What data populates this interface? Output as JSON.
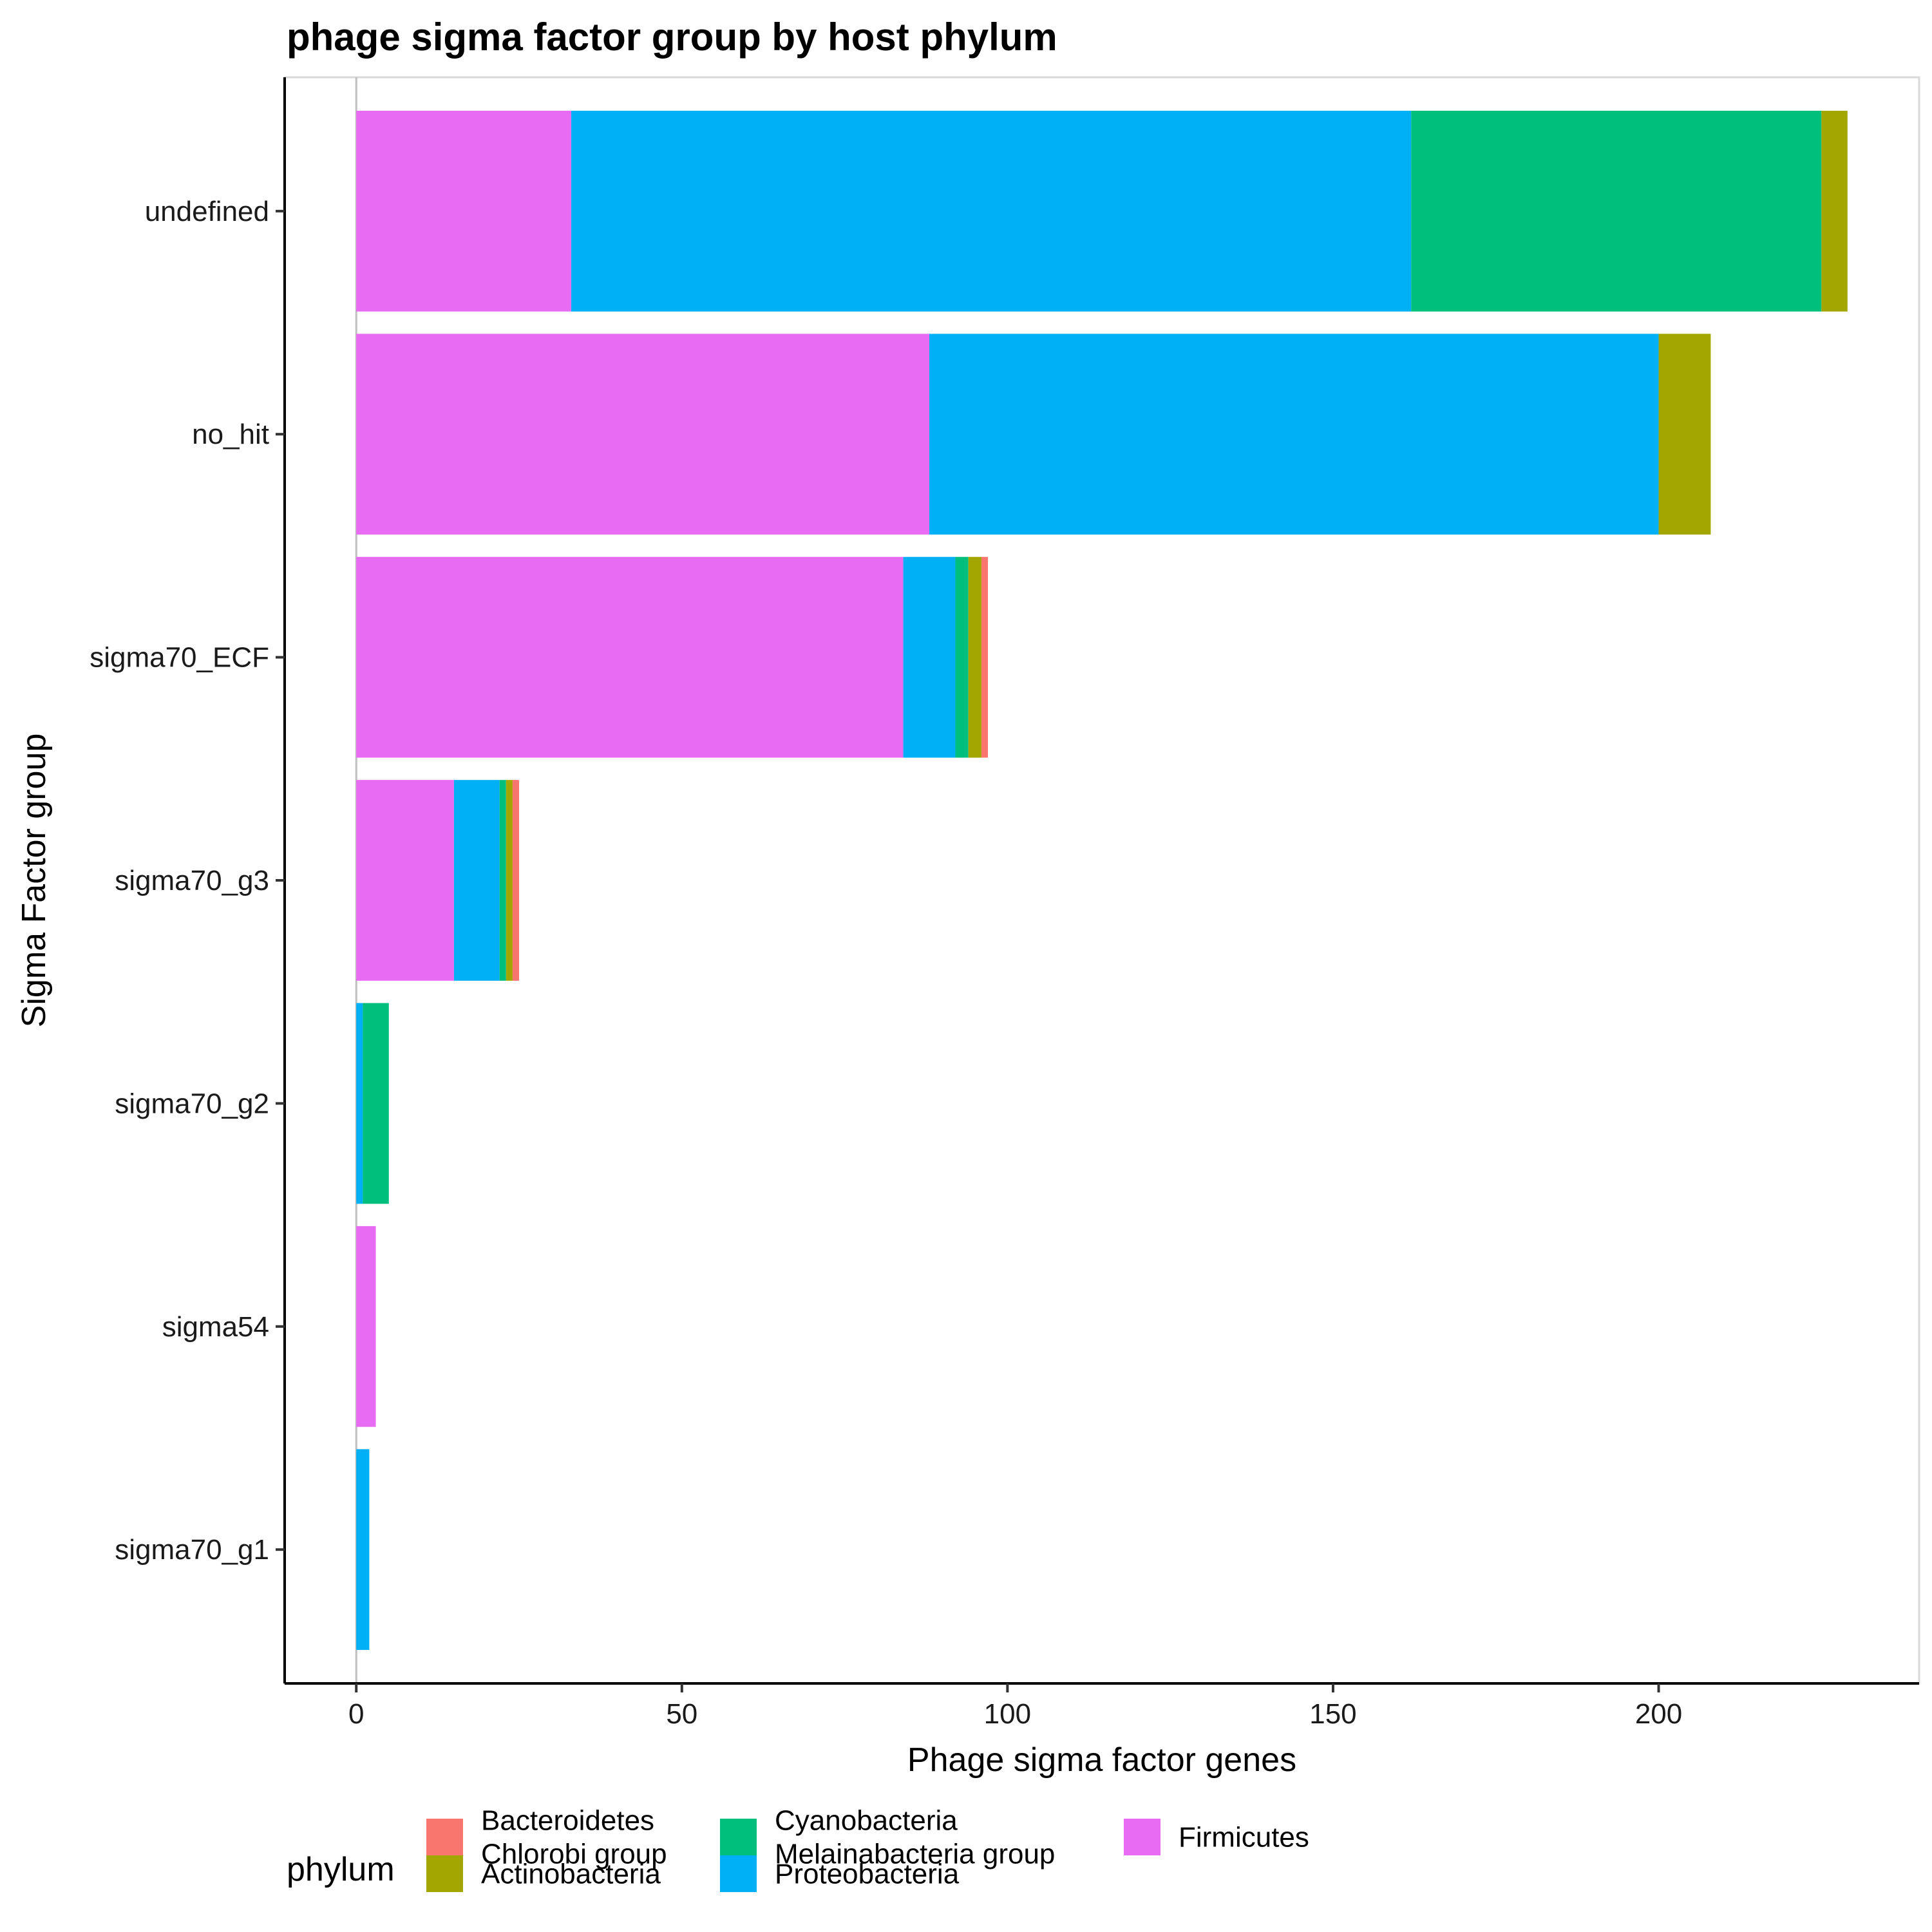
{
  "chart_data": {
    "type": "bar",
    "orientation": "horizontal",
    "stacked": true,
    "title": "phage sigma factor group by host phylum",
    "xlabel": "Phage sigma factor genes",
    "ylabel": "Sigma Factor group",
    "xlim": [
      -11,
      240
    ],
    "xticks": [
      0,
      50,
      100,
      150,
      200
    ],
    "grid": false,
    "legend_position": "bottom",
    "legend_title": "phylum",
    "categories": [
      "undefined",
      "no_hit",
      "sigma70_ECF",
      "sigma70_g3",
      "sigma70_g2",
      "sigma54",
      "sigma70_g1"
    ],
    "series": [
      {
        "name": "Bacteroidetes\nChlorobi group",
        "color": "#F8766D",
        "values": [
          0,
          0,
          1,
          1,
          0,
          0,
          0
        ]
      },
      {
        "name": "Actinobacteria",
        "color": "#A3A500",
        "values": [
          4,
          8,
          2,
          1,
          0,
          0,
          0
        ]
      },
      {
        "name": "Cyanobacteria\nMelainabacteria group",
        "color": "#00BF7D",
        "values": [
          63,
          0,
          2,
          1,
          4,
          0,
          0
        ]
      },
      {
        "name": "Proteobacteria",
        "color": "#00B0F6",
        "values": [
          129,
          112,
          8,
          7,
          1,
          0,
          2
        ]
      },
      {
        "name": "Firmicutes",
        "color": "#E76BF3",
        "values": [
          33,
          88,
          84,
          15,
          0,
          3,
          0
        ]
      }
    ]
  }
}
